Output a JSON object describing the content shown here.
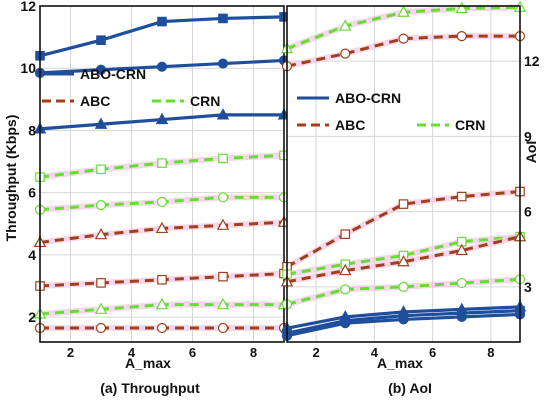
{
  "chart_data": [
    {
      "type": "line",
      "caption": "(a) Throughput",
      "xlabel": "A_max",
      "ylabel": "Throughput (Kbps)",
      "xlim": [
        1,
        9
      ],
      "ylim": [
        1.2,
        12
      ],
      "x_ticks": [
        2,
        4,
        6,
        8
      ],
      "y_ticks": [
        2,
        4,
        6,
        8,
        10,
        12
      ],
      "grid": true,
      "legend": [
        {
          "label": "ABO-CRN",
          "color": "#1f4e9c",
          "style": "solid"
        },
        {
          "label": "ABC",
          "color": "#a0401a",
          "style": "dashed"
        },
        {
          "label": "CRN",
          "color": "#66dd33",
          "style": "dashed"
        }
      ],
      "series": [
        {
          "color": "#1f4e9c",
          "style": "solid",
          "marker": "square",
          "x": [
            1,
            3,
            5,
            7,
            9
          ],
          "y": [
            10.4,
            10.9,
            11.5,
            11.6,
            11.65
          ]
        },
        {
          "color": "#1f4e9c",
          "style": "solid",
          "marker": "circle",
          "x": [
            1,
            3,
            5,
            7,
            9
          ],
          "y": [
            9.85,
            9.95,
            10.05,
            10.15,
            10.25
          ]
        },
        {
          "color": "#1f4e9c",
          "style": "solid",
          "marker": "triangle",
          "x": [
            1,
            3,
            5,
            7,
            9
          ],
          "y": [
            8.05,
            8.2,
            8.35,
            8.5,
            8.5
          ]
        },
        {
          "color": "#66dd33",
          "style": "dashed",
          "marker": "square",
          "x": [
            1,
            3,
            5,
            7,
            9
          ],
          "y": [
            6.5,
            6.75,
            6.95,
            7.1,
            7.2
          ]
        },
        {
          "color": "#66dd33",
          "style": "dashed",
          "marker": "circle",
          "x": [
            1,
            3,
            5,
            7,
            9
          ],
          "y": [
            5.45,
            5.6,
            5.7,
            5.85,
            5.85
          ]
        },
        {
          "color": "#a0401a",
          "style": "dashed",
          "marker": "triangle",
          "x": [
            1,
            3,
            5,
            7,
            9
          ],
          "y": [
            4.4,
            4.65,
            4.85,
            4.95,
            5.05
          ]
        },
        {
          "color": "#a0401a",
          "style": "dashed",
          "marker": "square",
          "x": [
            1,
            3,
            5,
            7,
            9
          ],
          "y": [
            3.0,
            3.1,
            3.2,
            3.3,
            3.4
          ]
        },
        {
          "color": "#66dd33",
          "style": "dashed",
          "marker": "triangle",
          "x": [
            1,
            3,
            5,
            7,
            9
          ],
          "y": [
            2.1,
            2.25,
            2.4,
            2.4,
            2.4
          ]
        },
        {
          "color": "#a0401a",
          "style": "dashed",
          "marker": "circle",
          "x": [
            1,
            3,
            5,
            7,
            9
          ],
          "y": [
            1.65,
            1.65,
            1.65,
            1.65,
            1.65
          ]
        }
      ]
    },
    {
      "type": "line",
      "caption": "(b) AoI",
      "xlabel": "A_max",
      "ylabel": "AoI",
      "xlim": [
        1,
        9
      ],
      "ylim": [
        0.8,
        14.2
      ],
      "x_ticks": [
        2,
        4,
        6,
        8
      ],
      "y_ticks": [
        3,
        6,
        9,
        12
      ],
      "grid": true,
      "legend": [
        {
          "label": "ABO-CRN",
          "color": "#1f4e9c",
          "style": "solid"
        },
        {
          "label": "ABC",
          "color": "#a0401a",
          "style": "dashed"
        },
        {
          "label": "CRN",
          "color": "#66dd33",
          "style": "dashed"
        }
      ],
      "series": [
        {
          "color": "#66dd33",
          "style": "dashed",
          "marker": "triangle",
          "x": [
            1,
            3,
            5,
            7,
            9
          ],
          "y": [
            12.5,
            13.4,
            13.95,
            14.1,
            14.15
          ]
        },
        {
          "color": "#a0401a",
          "style": "dashed",
          "marker": "circle",
          "x": [
            1,
            3,
            5,
            7,
            9
          ],
          "y": [
            11.8,
            12.3,
            12.9,
            13.0,
            13.0
          ]
        },
        {
          "color": "#a0401a",
          "style": "dashed",
          "marker": "square",
          "x": [
            1,
            3,
            5,
            7,
            9
          ],
          "y": [
            3.8,
            5.1,
            6.3,
            6.6,
            6.8
          ]
        },
        {
          "color": "#66dd33",
          "style": "dashed",
          "marker": "square",
          "x": [
            1,
            3,
            5,
            7,
            9
          ],
          "y": [
            3.5,
            3.9,
            4.25,
            4.8,
            5.0
          ]
        },
        {
          "color": "#a0401a",
          "style": "dashed",
          "marker": "triangle",
          "x": [
            1,
            3,
            5,
            7,
            9
          ],
          "y": [
            3.2,
            3.65,
            4.0,
            4.45,
            5.0
          ]
        },
        {
          "color": "#66dd33",
          "style": "dashed",
          "marker": "circle",
          "x": [
            1,
            3,
            5,
            7,
            9
          ],
          "y": [
            2.3,
            2.9,
            3.0,
            3.15,
            3.3
          ]
        },
        {
          "color": "#1f4e9c",
          "style": "solid",
          "marker": "triangle",
          "x": [
            1,
            3,
            5,
            7,
            9
          ],
          "y": [
            1.35,
            1.8,
            2.0,
            2.1,
            2.2
          ]
        },
        {
          "color": "#1f4e9c",
          "style": "solid",
          "marker": "square",
          "x": [
            1,
            3,
            5,
            7,
            9
          ],
          "y": [
            1.15,
            1.65,
            1.85,
            1.95,
            2.05
          ]
        },
        {
          "color": "#1f4e9c",
          "style": "solid",
          "marker": "circle",
          "x": [
            1,
            3,
            5,
            7,
            9
          ],
          "y": [
            1.05,
            1.55,
            1.7,
            1.8,
            1.9
          ]
        }
      ]
    }
  ]
}
